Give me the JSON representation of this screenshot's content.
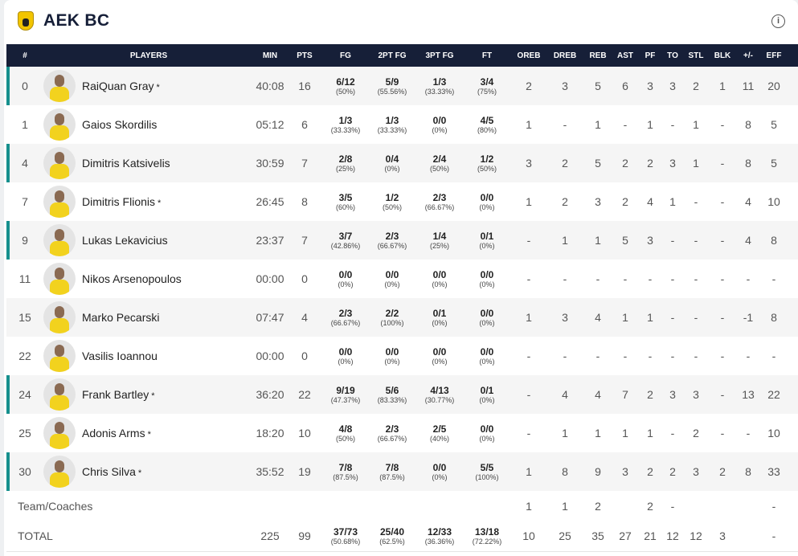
{
  "team": {
    "name": "AEK BC",
    "logo": "aek-logo",
    "info_icon": "info-icon"
  },
  "colors": {
    "header_bg": "#161f38",
    "starter_accent": "#16908e",
    "alt_row": "#f5f5f5"
  },
  "headers": [
    "#",
    "PLAYERS",
    "MIN",
    "PTS",
    "FG",
    "2PT FG",
    "3PT FG",
    "FT",
    "OREB",
    "DREB",
    "REB",
    "AST",
    "PF",
    "TO",
    "STL",
    "BLK",
    "+/-",
    "EFF"
  ],
  "players": [
    {
      "num": "0",
      "name": "RaiQuan Gray",
      "star": "*",
      "min": "40:08",
      "pts": "16",
      "fg": "6/12",
      "fgp": "(50%)",
      "p2": "5/9",
      "p2p": "(55.56%)",
      "p3": "1/3",
      "p3p": "(33.33%)",
      "ft": "3/4",
      "ftp": "(75%)",
      "oreb": "2",
      "dreb": "3",
      "reb": "5",
      "ast": "6",
      "pf": "3",
      "to": "3",
      "stl": "2",
      "blk": "1",
      "pm": "11",
      "eff": "20",
      "starter": true
    },
    {
      "num": "1",
      "name": "Gaios Skordilis",
      "star": "",
      "min": "05:12",
      "pts": "6",
      "fg": "1/3",
      "fgp": "(33.33%)",
      "p2": "1/3",
      "p2p": "(33.33%)",
      "p3": "0/0",
      "p3p": "(0%)",
      "ft": "4/5",
      "ftp": "(80%)",
      "oreb": "1",
      "dreb": "-",
      "reb": "1",
      "ast": "-",
      "pf": "1",
      "to": "-",
      "stl": "1",
      "blk": "-",
      "pm": "8",
      "eff": "5",
      "starter": false
    },
    {
      "num": "4",
      "name": "Dimitris Katsivelis",
      "star": "",
      "min": "30:59",
      "pts": "7",
      "fg": "2/8",
      "fgp": "(25%)",
      "p2": "0/4",
      "p2p": "(0%)",
      "p3": "2/4",
      "p3p": "(50%)",
      "ft": "1/2",
      "ftp": "(50%)",
      "oreb": "3",
      "dreb": "2",
      "reb": "5",
      "ast": "2",
      "pf": "2",
      "to": "3",
      "stl": "1",
      "blk": "-",
      "pm": "8",
      "eff": "5",
      "starter": true
    },
    {
      "num": "7",
      "name": "Dimitris Flionis",
      "star": "*",
      "min": "26:45",
      "pts": "8",
      "fg": "3/5",
      "fgp": "(60%)",
      "p2": "1/2",
      "p2p": "(50%)",
      "p3": "2/3",
      "p3p": "(66.67%)",
      "ft": "0/0",
      "ftp": "(0%)",
      "oreb": "1",
      "dreb": "2",
      "reb": "3",
      "ast": "2",
      "pf": "4",
      "to": "1",
      "stl": "-",
      "blk": "-",
      "pm": "4",
      "eff": "10",
      "starter": false
    },
    {
      "num": "9",
      "name": "Lukas Lekavicius",
      "star": "",
      "min": "23:37",
      "pts": "7",
      "fg": "3/7",
      "fgp": "(42.86%)",
      "p2": "2/3",
      "p2p": "(66.67%)",
      "p3": "1/4",
      "p3p": "(25%)",
      "ft": "0/1",
      "ftp": "(0%)",
      "oreb": "-",
      "dreb": "1",
      "reb": "1",
      "ast": "5",
      "pf": "3",
      "to": "-",
      "stl": "-",
      "blk": "-",
      "pm": "4",
      "eff": "8",
      "starter": true
    },
    {
      "num": "11",
      "name": "Nikos Arsenopoulos",
      "star": "",
      "min": "00:00",
      "pts": "0",
      "fg": "0/0",
      "fgp": "(0%)",
      "p2": "0/0",
      "p2p": "(0%)",
      "p3": "0/0",
      "p3p": "(0%)",
      "ft": "0/0",
      "ftp": "(0%)",
      "oreb": "-",
      "dreb": "-",
      "reb": "-",
      "ast": "-",
      "pf": "-",
      "to": "-",
      "stl": "-",
      "blk": "-",
      "pm": "-",
      "eff": "-",
      "starter": false
    },
    {
      "num": "15",
      "name": "Marko Pecarski",
      "star": "",
      "min": "07:47",
      "pts": "4",
      "fg": "2/3",
      "fgp": "(66.67%)",
      "p2": "2/2",
      "p2p": "(100%)",
      "p3": "0/1",
      "p3p": "(0%)",
      "ft": "0/0",
      "ftp": "(0%)",
      "oreb": "1",
      "dreb": "3",
      "reb": "4",
      "ast": "1",
      "pf": "1",
      "to": "-",
      "stl": "-",
      "blk": "-",
      "pm": "-1",
      "eff": "8",
      "starter": false
    },
    {
      "num": "22",
      "name": "Vasilis Ioannou",
      "star": "",
      "min": "00:00",
      "pts": "0",
      "fg": "0/0",
      "fgp": "(0%)",
      "p2": "0/0",
      "p2p": "(0%)",
      "p3": "0/0",
      "p3p": "(0%)",
      "ft": "0/0",
      "ftp": "(0%)",
      "oreb": "-",
      "dreb": "-",
      "reb": "-",
      "ast": "-",
      "pf": "-",
      "to": "-",
      "stl": "-",
      "blk": "-",
      "pm": "-",
      "eff": "-",
      "starter": false
    },
    {
      "num": "24",
      "name": "Frank Bartley",
      "star": "*",
      "min": "36:20",
      "pts": "22",
      "fg": "9/19",
      "fgp": "(47.37%)",
      "p2": "5/6",
      "p2p": "(83.33%)",
      "p3": "4/13",
      "p3p": "(30.77%)",
      "ft": "0/1",
      "ftp": "(0%)",
      "oreb": "-",
      "dreb": "4",
      "reb": "4",
      "ast": "7",
      "pf": "2",
      "to": "3",
      "stl": "3",
      "blk": "-",
      "pm": "13",
      "eff": "22",
      "starter": true
    },
    {
      "num": "25",
      "name": "Adonis Arms",
      "star": "*",
      "min": "18:20",
      "pts": "10",
      "fg": "4/8",
      "fgp": "(50%)",
      "p2": "2/3",
      "p2p": "(66.67%)",
      "p3": "2/5",
      "p3p": "(40%)",
      "ft": "0/0",
      "ftp": "(0%)",
      "oreb": "-",
      "dreb": "1",
      "reb": "1",
      "ast": "1",
      "pf": "1",
      "to": "-",
      "stl": "2",
      "blk": "-",
      "pm": "-",
      "eff": "10",
      "starter": false
    },
    {
      "num": "30",
      "name": "Chris Silva",
      "star": "*",
      "min": "35:52",
      "pts": "19",
      "fg": "7/8",
      "fgp": "(87.5%)",
      "p2": "7/8",
      "p2p": "(87.5%)",
      "p3": "0/0",
      "p3p": "(0%)",
      "ft": "5/5",
      "ftp": "(100%)",
      "oreb": "1",
      "dreb": "8",
      "reb": "9",
      "ast": "3",
      "pf": "2",
      "to": "2",
      "stl": "3",
      "blk": "2",
      "pm": "8",
      "eff": "33",
      "starter": true
    }
  ],
  "team_row": {
    "label": "Team/Coaches",
    "oreb": "1",
    "dreb": "1",
    "reb": "2",
    "ast": "",
    "pf": "2",
    "to": "-",
    "stl": "",
    "blk": "",
    "pm": "",
    "eff": "-"
  },
  "total": {
    "label": "TOTAL",
    "min": "225",
    "pts": "99",
    "fg": "37/73",
    "fgp": "(50.68%)",
    "p2": "25/40",
    "p2p": "(62.5%)",
    "p3": "12/33",
    "p3p": "(36.36%)",
    "ft": "13/18",
    "ftp": "(72.22%)",
    "oreb": "10",
    "dreb": "25",
    "reb": "35",
    "ast": "27",
    "pf": "21",
    "to": "12",
    "stl": "12",
    "blk": "3",
    "pm": "",
    "eff": "-"
  }
}
